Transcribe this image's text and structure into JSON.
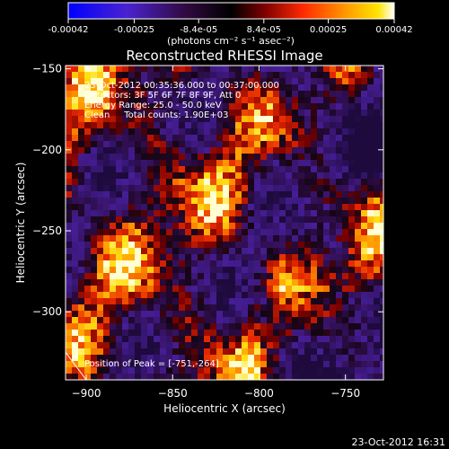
{
  "colorbar": {
    "ticks": [
      "-0.00042",
      "-0.00025",
      "-8.4e-05",
      "8.4e-05",
      "0.00025",
      "0.00042"
    ],
    "tick_values": [
      -0.00042,
      -0.00025,
      -8.4e-05,
      8.4e-05,
      0.00025,
      0.00042
    ],
    "range": [
      -0.00042,
      0.00042
    ],
    "units_label": "(photons cm⁻² s⁻¹ asec⁻²)",
    "colors": [
      "#0000ff",
      "#5a1fc8",
      "#000000",
      "#8a0000",
      "#ff3000",
      "#ff9a00",
      "#ffe000",
      "#ffffff"
    ]
  },
  "chart_data": {
    "type": "heatmap",
    "title": "Reconstructed RHESSI Image",
    "xlabel": "Heliocentric X (arcsec)",
    "ylabel": "Heliocentric Y (arcsec)",
    "xlim": [
      -912,
      -728
    ],
    "ylim": [
      -342,
      -148
    ],
    "x_ticks": [
      -900,
      -850,
      -800,
      -750
    ],
    "y_ticks": [
      -150,
      -200,
      -250,
      -300
    ],
    "x_tick_labels": [
      "−900",
      "−850",
      "−800",
      "−750"
    ],
    "y_tick_labels": [
      "−150",
      "−200",
      "−250",
      "−300"
    ],
    "annotations": [
      "23-Oct-2012 00:35:36.000 to 00:37:00.000",
      "Detectors: 3F 5F 6F 7F 8F 9F, Att 0",
      "Energy Range: 25.0 - 50.0 keV",
      "Clean     Total counts: 1.90E+03"
    ],
    "peak_label": "Position of Peak = [-751,-264]",
    "peak": [
      -751,
      -264
    ],
    "limb_arc": [
      [
        -912,
        -325
      ],
      [
        -900,
        -342
      ]
    ]
  },
  "footer": {
    "date": "23-Oct-2012 16:31"
  }
}
